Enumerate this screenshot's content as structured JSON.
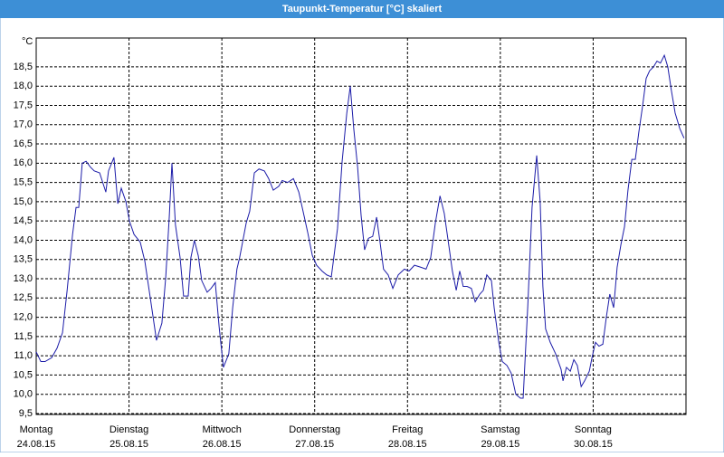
{
  "chart_data": {
    "type": "line",
    "title": "Taupunkt-Temperatur [°C] skaliert",
    "unit": "°C",
    "color": "#1c1ca8",
    "grid": true,
    "x": [
      0,
      1.2,
      2.3,
      4.0,
      5.4,
      6.8,
      8.0,
      9.4,
      10.3,
      11.0,
      11.9,
      12.9,
      14.0,
      15.0,
      16.4,
      18.0,
      18.7,
      20.1,
      21.1,
      22.0,
      23.2,
      24.1,
      25.3,
      26.9,
      28.1,
      29.5,
      31.1,
      32.5,
      33.5,
      34.4,
      35.1,
      36.0,
      37.2,
      38.1,
      39.3,
      40.0,
      40.9,
      41.9,
      42.8,
      44.2,
      45.2,
      46.3,
      47.3,
      48.4,
      49.8,
      50.8,
      51.9,
      52.6,
      54.3,
      55.2,
      56.4,
      57.6,
      59.0,
      60.1,
      61.3,
      62.7,
      63.6,
      65.0,
      66.5,
      67.9,
      69.0,
      70.2,
      71.4,
      72.5,
      73.9,
      75.1,
      76.3,
      77.9,
      79.1,
      80.3,
      81.2,
      82.1,
      83.1,
      84.0,
      84.9,
      85.9,
      87.0,
      88.0,
      88.9,
      89.8,
      91.0,
      92.2,
      93.6,
      95.2,
      96.4,
      97.8,
      99.4,
      100.8,
      102.0,
      103.2,
      104.4,
      105.5,
      106.7,
      107.6,
      108.6,
      109.5,
      110.4,
      111.4,
      112.5,
      113.5,
      114.7,
      115.6,
      116.5,
      117.7,
      118.4,
      119.6,
      120.5,
      121.7,
      122.8,
      124.0,
      125.2,
      125.9,
      127.1,
      128.2,
      129.4,
      130.3,
      131.0,
      131.7,
      132.9,
      134.3,
      135.7,
      136.2,
      137.1,
      138.1,
      139.0,
      139.9,
      140.9,
      141.8,
      143.0,
      143.7,
      144.6,
      145.5,
      146.5,
      147.4,
      148.3,
      149.3,
      150.2,
      151.2,
      152.1,
      153.0,
      154.0,
      154.9,
      155.8,
      156.8,
      157.7,
      158.6,
      159.6,
      160.5,
      161.4,
      162.4,
      163.3,
      164.2,
      165.2,
      166.4,
      167.5
    ],
    "values": [
      11.1,
      10.85,
      10.85,
      10.95,
      11.2,
      11.6,
      12.7,
      14.15,
      14.85,
      14.85,
      16.0,
      16.05,
      15.9,
      15.8,
      15.75,
      15.25,
      15.8,
      16.15,
      14.95,
      15.35,
      15.0,
      14.5,
      14.15,
      13.95,
      13.45,
      12.5,
      11.4,
      11.85,
      13.05,
      14.6,
      16.0,
      14.4,
      13.55,
      12.55,
      12.55,
      13.55,
      14.0,
      13.6,
      12.95,
      12.65,
      12.75,
      12.9,
      11.75,
      10.7,
      11.05,
      12.25,
      13.25,
      13.55,
      14.45,
      14.75,
      15.75,
      15.85,
      15.8,
      15.6,
      15.3,
      15.4,
      15.55,
      15.5,
      15.6,
      15.25,
      14.75,
      14.2,
      13.6,
      13.35,
      13.2,
      13.1,
      13.05,
      14.3,
      16.05,
      17.3,
      18.0,
      16.9,
      15.9,
      14.65,
      13.75,
      14.05,
      14.1,
      14.6,
      13.95,
      13.25,
      13.1,
      12.75,
      13.1,
      13.25,
      13.2,
      13.35,
      13.3,
      13.25,
      13.55,
      14.45,
      15.15,
      14.7,
      13.85,
      13.2,
      12.7,
      13.2,
      12.8,
      12.8,
      12.75,
      12.4,
      12.6,
      12.7,
      13.1,
      12.95,
      12.25,
      11.35,
      10.85,
      10.75,
      10.55,
      10.0,
      9.9,
      9.9,
      12.3,
      14.85,
      16.2,
      15.0,
      12.8,
      11.7,
      11.35,
      11.05,
      10.65,
      10.35,
      10.7,
      10.6,
      10.9,
      10.75,
      10.2,
      10.35,
      10.6,
      10.95,
      11.35,
      11.25,
      11.3,
      12.0,
      12.6,
      12.25,
      13.3,
      13.9,
      14.35,
      15.3,
      16.1,
      16.1,
      16.8,
      17.5,
      18.2,
      18.4,
      18.5,
      18.65,
      18.6,
      18.8,
      18.5,
      17.9,
      17.3,
      16.9,
      16.65
    ],
    "xlim": [
      0,
      168
    ],
    "xticks": [
      {
        "value": 0,
        "label": "Montag",
        "date": "24.08.15"
      },
      {
        "value": 24,
        "label": "Dienstag",
        "date": "25.08.15"
      },
      {
        "value": 48,
        "label": "Mittwoch",
        "date": "26.08.15"
      },
      {
        "value": 72,
        "label": "Donnerstag",
        "date": "27.08.15"
      },
      {
        "value": 96,
        "label": "Freitag",
        "date": "28.08.15"
      },
      {
        "value": 120,
        "label": "Samstag",
        "date": "29.08.15"
      },
      {
        "value": 144,
        "label": "Sonntag",
        "date": "30.08.15"
      }
    ],
    "ylim": [
      9.5,
      19.25
    ],
    "yticks": [
      {
        "value": 9.5,
        "label": "9,5"
      },
      {
        "value": 10,
        "label": "10,0"
      },
      {
        "value": 10.5,
        "label": "10,5"
      },
      {
        "value": 11,
        "label": "11,0"
      },
      {
        "value": 11.5,
        "label": "11,5"
      },
      {
        "value": 12,
        "label": "12,0"
      },
      {
        "value": 12.5,
        "label": "12,5"
      },
      {
        "value": 13,
        "label": "13,0"
      },
      {
        "value": 13.5,
        "label": "13,5"
      },
      {
        "value": 14,
        "label": "14,0"
      },
      {
        "value": 14.5,
        "label": "14,5"
      },
      {
        "value": 15,
        "label": "15,0"
      },
      {
        "value": 15.5,
        "label": "15,5"
      },
      {
        "value": 16,
        "label": "16,0"
      },
      {
        "value": 16.5,
        "label": "16,5"
      },
      {
        "value": 17,
        "label": "17,0"
      },
      {
        "value": 17.5,
        "label": "17,5"
      },
      {
        "value": 18,
        "label": "18,0"
      },
      {
        "value": 18.5,
        "label": "18,5"
      }
    ]
  }
}
